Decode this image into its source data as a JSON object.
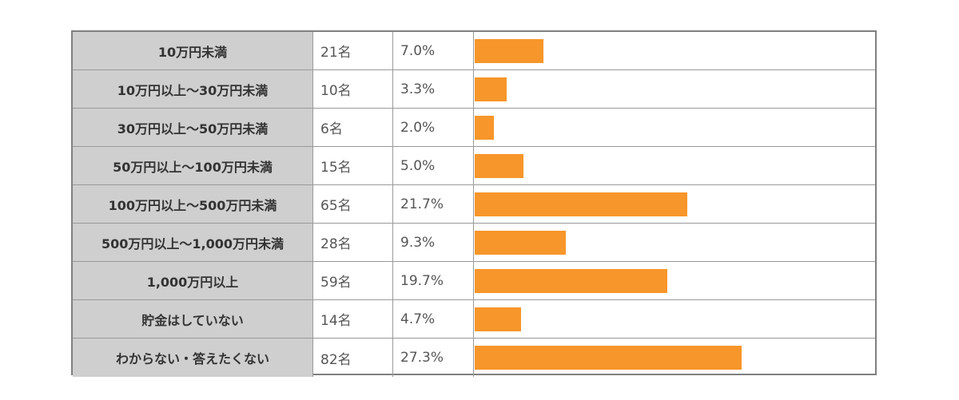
{
  "chart_data": {
    "type": "table",
    "columns": [
      "category",
      "count",
      "percent",
      "bar"
    ],
    "max_percent_for_full_width": 41.0,
    "rows": [
      {
        "label": "10万円未満",
        "count": "21名",
        "percent": "7.0%",
        "value": 7.0
      },
      {
        "label": "10万円以上～30万円未満",
        "count": "10名",
        "percent": "3.3%",
        "value": 3.3
      },
      {
        "label": "30万円以上～50万円未満",
        "count": "6名",
        "percent": "2.0%",
        "value": 2.0
      },
      {
        "label": "50万円以上～100万円未満",
        "count": "15名",
        "percent": "5.0%",
        "value": 5.0
      },
      {
        "label": "100万円以上～500万円未満",
        "count": "65名",
        "percent": "21.7%",
        "value": 21.7
      },
      {
        "label": "500万円以上～1,000万円未満",
        "count": "28名",
        "percent": "9.3%",
        "value": 9.3
      },
      {
        "label": "1,000万円以上",
        "count": "59名",
        "percent": "19.7%",
        "value": 19.7
      },
      {
        "label": "貯金はしていない",
        "count": "14名",
        "percent": "4.7%",
        "value": 4.7
      },
      {
        "label": "わからない・答えたくない",
        "count": "82名",
        "percent": "27.3%",
        "value": 27.3
      }
    ],
    "bar_color": "#f7962a",
    "label_bg": "#cfcfcf"
  }
}
